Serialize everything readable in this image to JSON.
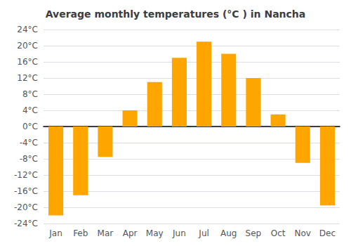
{
  "chart_data": {
    "type": "bar",
    "title": "Average monthly temperatures (°C ) in Nancha",
    "categories": [
      "Jan",
      "Feb",
      "Mar",
      "Apr",
      "May",
      "Jun",
      "Jul",
      "Aug",
      "Sep",
      "Oct",
      "Nov",
      "Dec"
    ],
    "values": [
      -22,
      -17,
      -7.5,
      4,
      11,
      17,
      21,
      18,
      12,
      3,
      -9,
      -19.5
    ],
    "color": "#FFA500",
    "ylim": [
      -24,
      24
    ],
    "yticks": [
      {
        "value": -24,
        "label": "-24°C"
      },
      {
        "value": -20,
        "label": "-20°C"
      },
      {
        "value": -16,
        "label": "-16°C"
      },
      {
        "value": -12,
        "label": "-12°C"
      },
      {
        "value": -8,
        "label": "-8°C"
      },
      {
        "value": -4,
        "label": "-4°C"
      },
      {
        "value": 0,
        "label": "0°C"
      },
      {
        "value": 4,
        "label": "4°C"
      },
      {
        "value": 8,
        "label": "8°C"
      },
      {
        "value": 12,
        "label": "12°C"
      },
      {
        "value": 16,
        "label": "16°C"
      },
      {
        "value": 20,
        "label": "20°C"
      },
      {
        "value": 24,
        "label": "24°C"
      }
    ],
    "grid": true
  }
}
